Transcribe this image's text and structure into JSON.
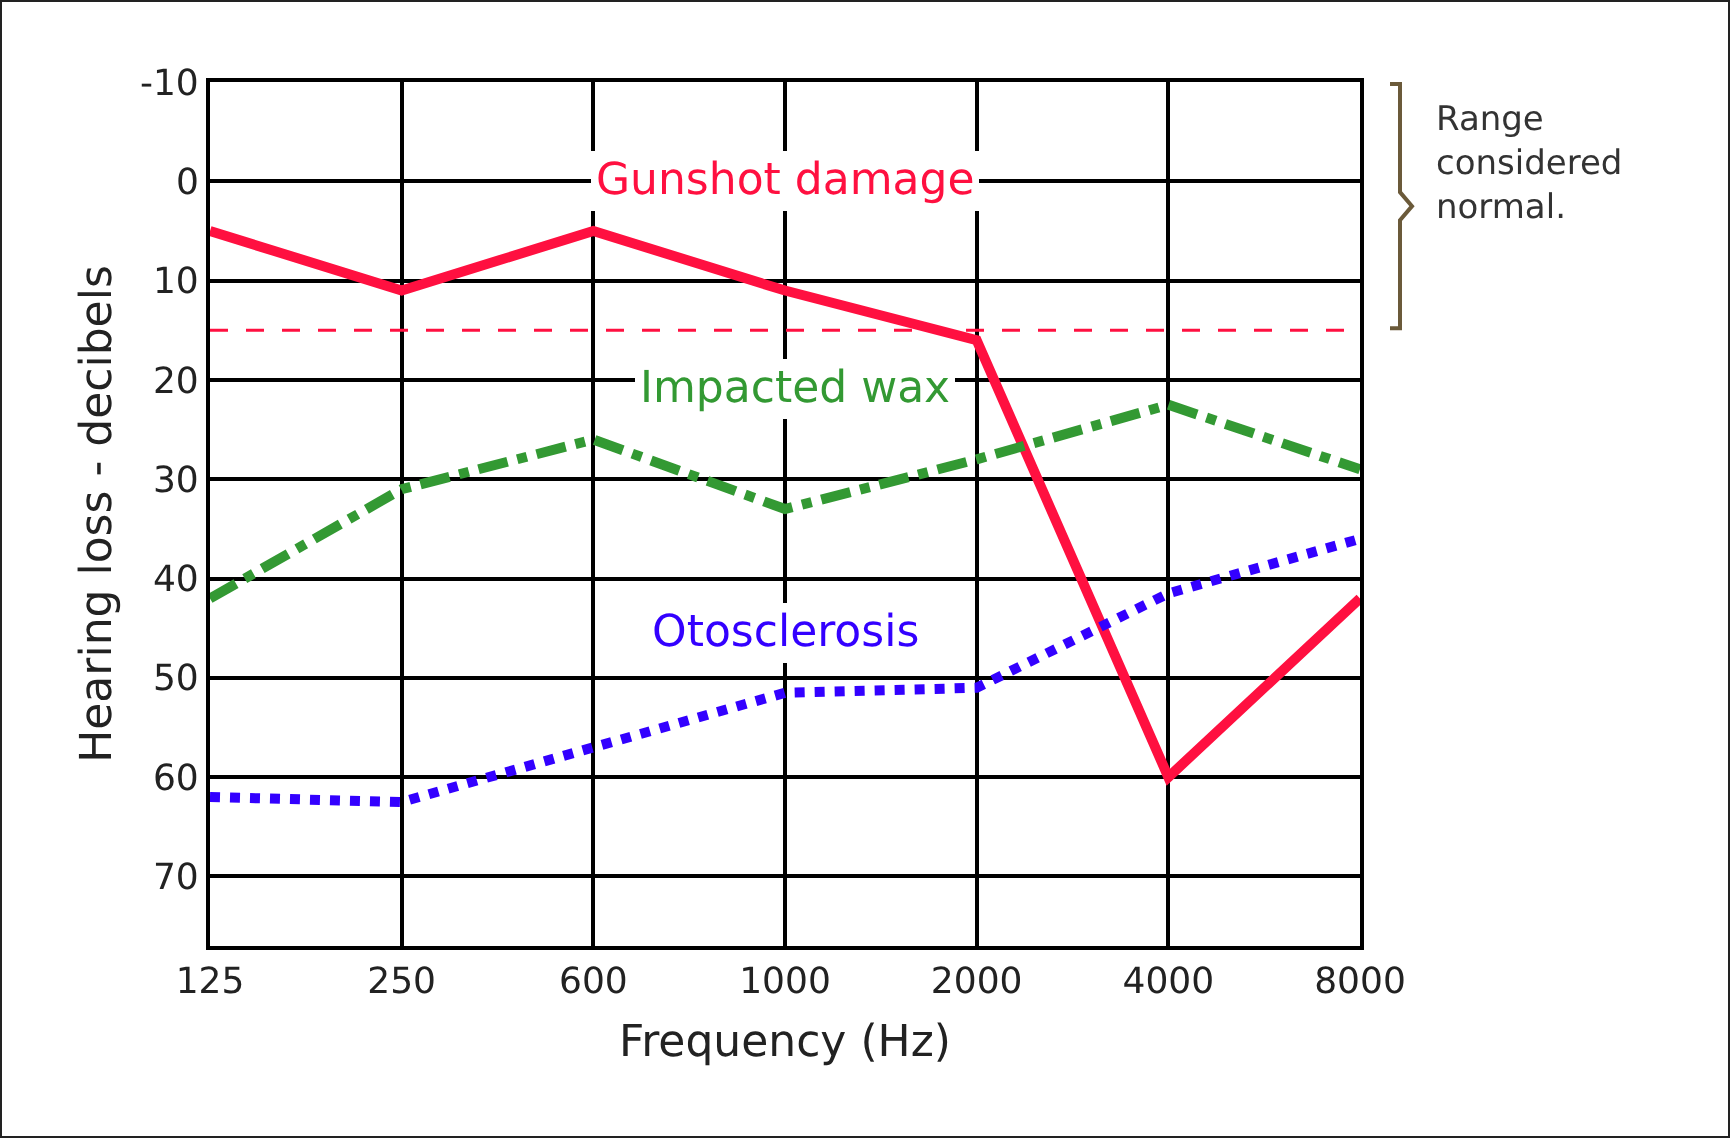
{
  "chart_data": {
    "type": "line",
    "xlabel": "Frequency (Hz)",
    "ylabel": "Hearing loss - decibels",
    "categories": [
      "125",
      "250",
      "600",
      "1000",
      "2000",
      "4000",
      "8000"
    ],
    "series": [
      {
        "name": "Gunshot damage",
        "color": "#ff1040",
        "line_style": "solid",
        "values": [
          5,
          11,
          5,
          11,
          16,
          60,
          42
        ]
      },
      {
        "name": "Impacted wax",
        "color": "#339933",
        "line_style": "dashdot",
        "values": [
          42,
          31,
          26,
          33,
          28,
          22.5,
          29
        ]
      },
      {
        "name": "Otosclerosis",
        "color": "#3300ff",
        "line_style": "dotted",
        "values": [
          62,
          62.5,
          57,
          51.5,
          51,
          41.5,
          36
        ]
      }
    ],
    "ylim": [
      77,
      -10
    ],
    "yticks": [
      -10,
      0,
      10,
      20,
      30,
      40,
      50,
      60,
      70
    ],
    "ref_lines": [
      {
        "axis": "y",
        "value": 15,
        "color": "#ff1040",
        "line_style": "dashed"
      }
    ],
    "annotations": [
      "Range considered normal."
    ],
    "grid": true,
    "legend": false,
    "marker": "none"
  }
}
